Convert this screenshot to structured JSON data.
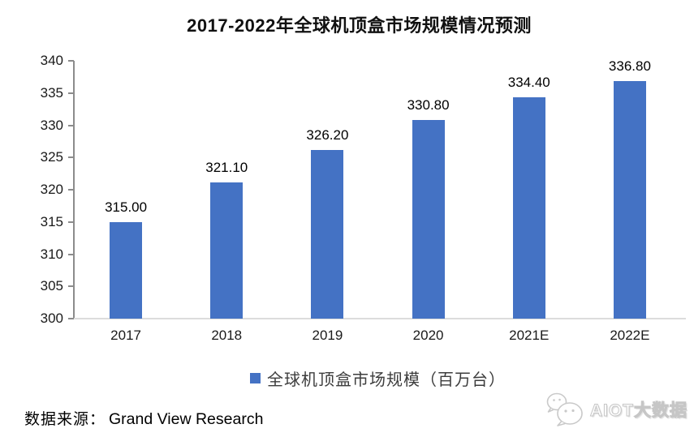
{
  "title": "2017-2022年全球机顶盒市场规模情况预测",
  "chart_data": {
    "type": "bar",
    "title": "2017-2022年全球机顶盒市场规模情况预测",
    "categories": [
      "2017",
      "2018",
      "2019",
      "2020",
      "2021E",
      "2022E"
    ],
    "values": [
      315.0,
      321.1,
      326.2,
      330.8,
      334.4,
      336.8
    ],
    "value_labels": [
      "315.00",
      "321.10",
      "326.20",
      "330.80",
      "334.40",
      "336.80"
    ],
    "xlabel": "",
    "ylabel": "",
    "ylim": [
      300,
      340
    ],
    "ytick_step": 5,
    "yticks": [
      300,
      305,
      310,
      315,
      320,
      325,
      330,
      335,
      340
    ],
    "grid": false,
    "legend_position": "bottom",
    "legend": [
      "全球机顶盒市场规模（百万台）"
    ],
    "bar_color": "#4472C4"
  },
  "legend": {
    "marker_color": "#4472C4",
    "label": "全球机顶盒市场规模（百万台）"
  },
  "source": {
    "prefix": "数据来源：",
    "name": "Grand View Research"
  },
  "watermark": {
    "icon": "wechat-icon",
    "text": "AIOT大数据"
  },
  "colors": {
    "bar": "#4472C4",
    "axis_line": "#8c8c8c",
    "baseline": "#dcdcdc",
    "text": "#111111",
    "watermark": "#c6c6c6"
  }
}
